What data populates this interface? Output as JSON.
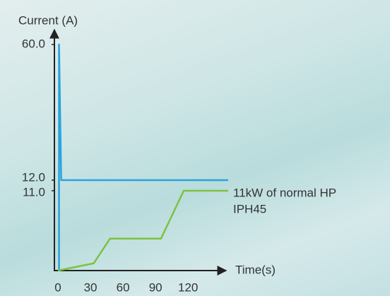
{
  "chart_data": {
    "type": "line",
    "y_label": "Current (A)",
    "x_label": "Time(s)",
    "xlim": [
      0,
      160
    ],
    "xticks": [
      0,
      30,
      60,
      90,
      120
    ],
    "ylim": [
      0,
      60
    ],
    "yticks": [
      {
        "value": 11,
        "label": "11.0"
      },
      {
        "value": 12,
        "label": "12.0"
      },
      {
        "value": 60,
        "label": "60.0"
      }
    ],
    "series": [
      {
        "name": "11kW of normal HP",
        "color": "#2aa3dc",
        "x": [
          1,
          1,
          3,
          157
        ],
        "values": [
          0,
          60,
          12,
          12
        ]
      },
      {
        "name": "IPH45",
        "color": "#7dc242",
        "x": [
          0,
          33,
          48,
          95,
          116,
          157
        ],
        "values": [
          0,
          1,
          4.4,
          4.4,
          11,
          11
        ]
      }
    ]
  }
}
